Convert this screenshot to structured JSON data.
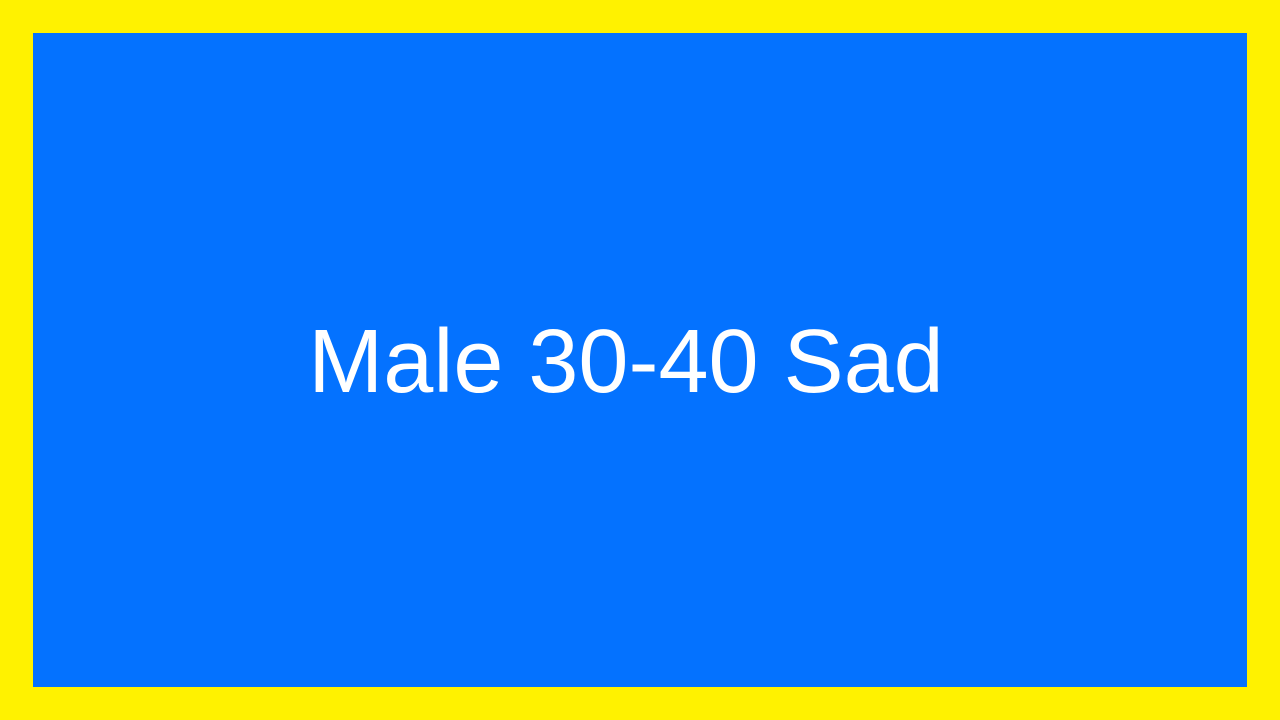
{
  "colors": {
    "border": "#FFF200",
    "panel": "#0472FF",
    "text": "#FFFFFF"
  },
  "panel": {
    "caption": "Male 30-40 Sad"
  }
}
